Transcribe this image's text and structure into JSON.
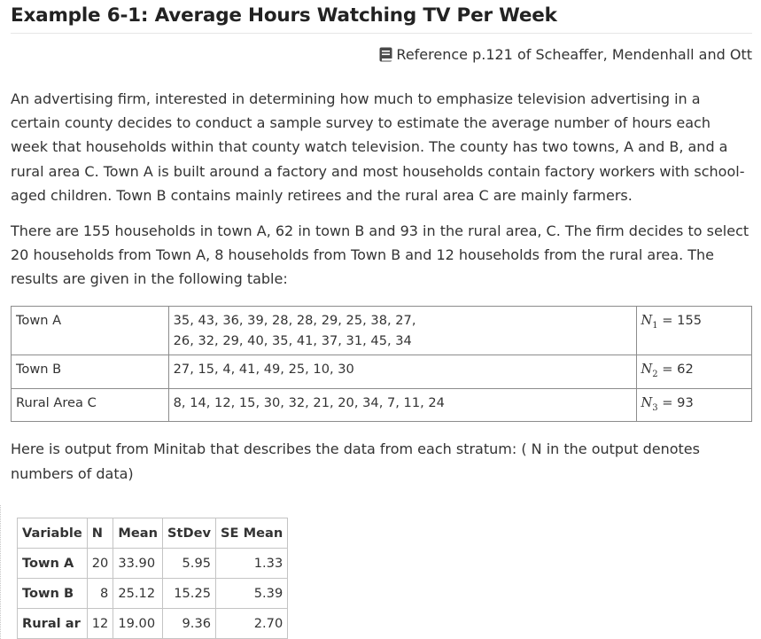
{
  "title": "Example 6-1: Average Hours Watching TV Per Week",
  "reference": {
    "icon": "book-icon",
    "text": "Reference p.121 of Scheaffer, Mendenhall and Ott"
  },
  "paragraphs": {
    "intro": "An advertising firm, interested in determining how much to emphasize television advertising in a certain county decides to conduct a sample survey to estimate the average number of hours each week that households within that county watch television. The county has two towns, A and B, and a rural area C. Town A is built around a factory and most households contain factory workers with school-aged children. Town B contains mainly retirees and the rural area C are mainly farmers.",
    "second": "There are 155 households in town A, 62 in town B and 93 in the rural area, C. The firm decides to select 20 households from Town A, 8 households from Town B and 12 households from the rural area. The results are given in the following table:",
    "minitab": "Here is output from Minitab that describes the data from each stratum: ( N in the output denotes numbers of data)"
  },
  "data_table": {
    "rows": [
      {
        "stratum": "Town A",
        "values_line1": "35, 43, 36, 39, 28, 28, 29, 25, 38, 27,",
        "values_line2": "26, 32, 29, 40, 35, 41, 37, 31, 45, 34",
        "n_symbol": "N",
        "n_sub": "1",
        "n_value": " = 155"
      },
      {
        "stratum": "Town B",
        "values_line1": "27, 15, 4, 41, 49, 25, 10, 30",
        "values_line2": "",
        "n_symbol": "N",
        "n_sub": "2",
        "n_value": " = 62"
      },
      {
        "stratum": "Rural Area C",
        "values_line1": "8, 14, 12, 15, 30, 32, 21, 20, 34, 7, 11, 24",
        "values_line2": "",
        "n_symbol": "N",
        "n_sub": "3",
        "n_value": " = 93"
      }
    ]
  },
  "stats_table": {
    "headers": [
      "Variable",
      "N",
      "Mean",
      "StDev",
      "SE Mean"
    ],
    "rows": [
      {
        "variable": "Town A",
        "n": "20",
        "mean": "33.90",
        "stdev": "5.95",
        "se_mean": "1.33"
      },
      {
        "variable": "Town B",
        "n": "8",
        "mean": "25.12",
        "stdev": "15.25",
        "se_mean": "5.39"
      },
      {
        "variable": "Rural ar",
        "n": "12",
        "mean": "19.00",
        "stdev": "9.36",
        "se_mean": "2.70"
      }
    ]
  }
}
